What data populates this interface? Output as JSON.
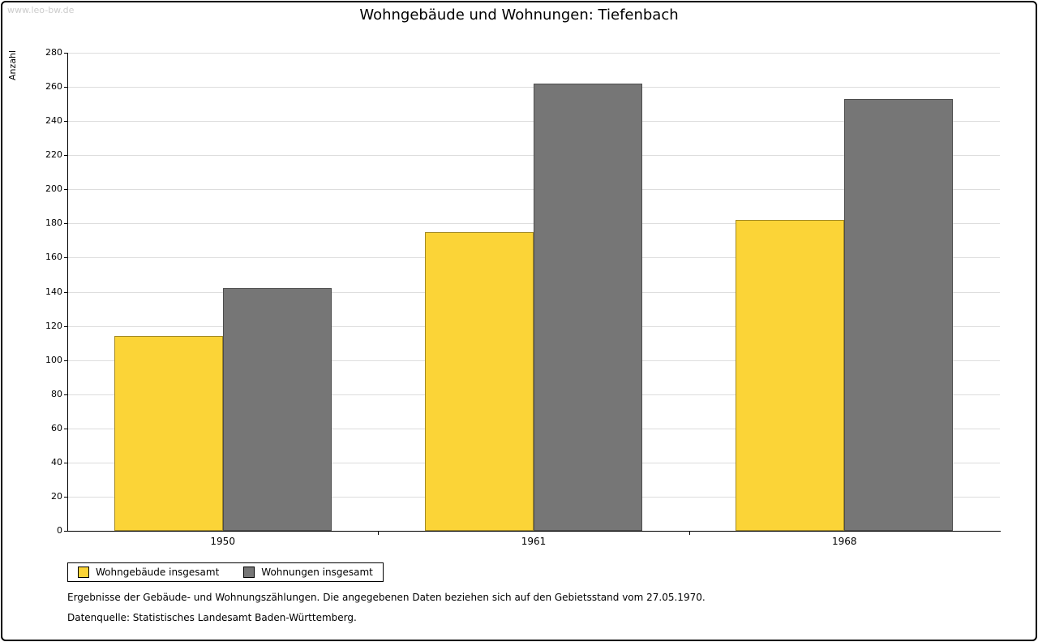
{
  "watermark": "www.leo-bw.de",
  "chart_data": {
    "type": "bar",
    "title": "Wohngebäude und Wohnungen: Tiefenbach",
    "ylabel": "Anzahl",
    "xlabel": "",
    "categories": [
      "1950",
      "1961",
      "1968"
    ],
    "series": [
      {
        "name": "Wohngebäude insgesamt",
        "color": "#FBD437",
        "values": [
          114,
          175,
          182
        ]
      },
      {
        "name": "Wohnungen insgesamt",
        "color": "#767676",
        "values": [
          142,
          262,
          253
        ]
      }
    ],
    "ylim": [
      0,
      280
    ],
    "ytick_step": 20,
    "grid": true,
    "legend_position": "bottom-left"
  },
  "footnotes": {
    "line1": "Ergebnisse der Gebäude- und Wohnungszählungen. Die angegebenen Daten beziehen sich auf den Gebietsstand vom 27.05.1970.",
    "line2": "Datenquelle: Statistisches Landesamt Baden-Württemberg."
  }
}
